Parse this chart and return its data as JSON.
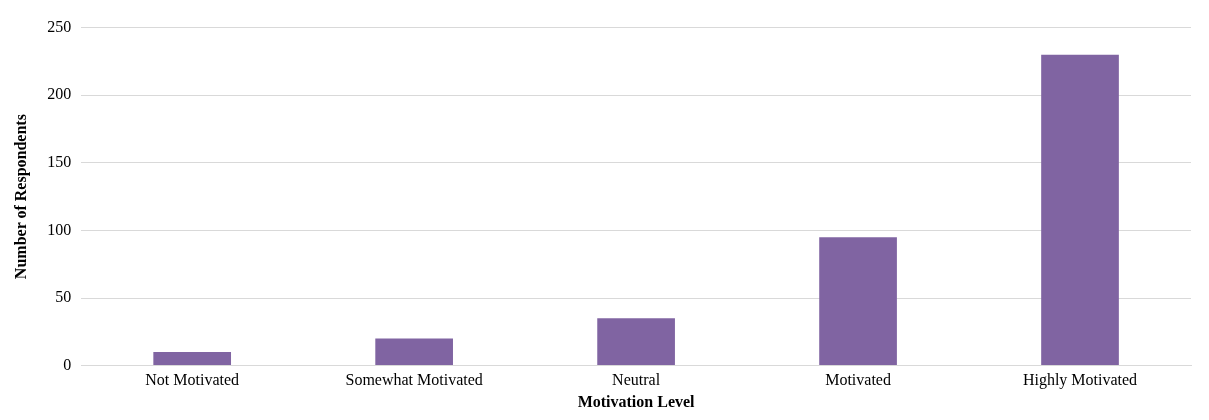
{
  "chart_data": {
    "type": "bar",
    "xlabel": "Motivation Level",
    "ylabel": "Number of Respondents",
    "categories": [
      "Not Motivated",
      "Somewhat Motivated",
      "Neutral",
      "Motivated",
      "Highly Motivated"
    ],
    "values": [
      10,
      20,
      35,
      95,
      230
    ],
    "color": "#8064a2",
    "ylim": [
      0,
      250
    ],
    "yticks": [
      0,
      50,
      100,
      150,
      200,
      250
    ],
    "grid": "y"
  }
}
